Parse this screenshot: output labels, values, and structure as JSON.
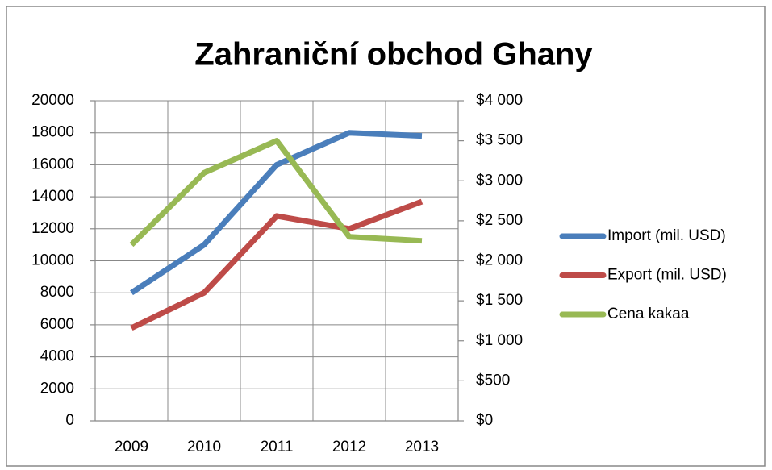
{
  "chart_data": {
    "type": "line",
    "title": "Zahraniční obchod Ghany",
    "categories": [
      "2009",
      "2010",
      "2011",
      "2012",
      "2013"
    ],
    "series": [
      {
        "name": "Import (mil. USD)",
        "color": "#4a7ebb",
        "values": [
          8000,
          11000,
          16000,
          18000,
          17800
        ]
      },
      {
        "name": "Export (mil. USD)",
        "color": "#be4b48",
        "values": [
          5800,
          8000,
          12800,
          12000,
          13700
        ]
      },
      {
        "name": "Cena kakaa",
        "color": "#98b954",
        "axis": "y2",
        "values": [
          2200,
          3100,
          3500,
          2300,
          2250
        ]
      }
    ],
    "ylim": [
      0,
      20000
    ],
    "yticks": [
      0,
      2000,
      4000,
      6000,
      8000,
      10000,
      12000,
      14000,
      16000,
      18000,
      20000
    ],
    "y2lim": [
      0,
      4000
    ],
    "y2ticks": [
      {
        "value": 0,
        "label": "$0"
      },
      {
        "value": 500,
        "label": "$500"
      },
      {
        "value": 1000,
        "label": "$1 000"
      },
      {
        "value": 1500,
        "label": "$1 500"
      },
      {
        "value": 2000,
        "label": "$2 000"
      },
      {
        "value": 2500,
        "label": "$2 500"
      },
      {
        "value": 3000,
        "label": "$3 000"
      },
      {
        "value": 3500,
        "label": "$3 500"
      },
      {
        "value": 4000,
        "label": "$4 000"
      }
    ],
    "grid": true,
    "legend": "right"
  }
}
